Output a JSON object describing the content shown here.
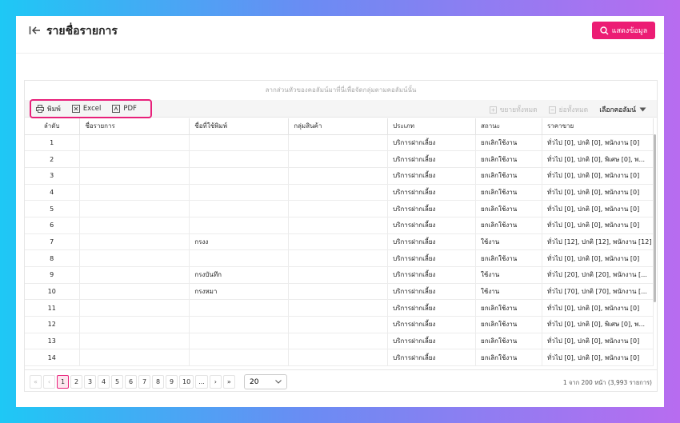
{
  "header": {
    "title": "รายชื่อรายการ",
    "button": "แสดงข้อมูล"
  },
  "table": {
    "group_hint": "ลากส่วนหัวของคอลัมน์มาที่นี่เพื่อจัดกลุ่มตามคอลัมน์นั้น",
    "toolbar_left": [
      "พิมพ์",
      "Excel",
      "PDF"
    ],
    "toolbar_right": [
      "ขยายทั้งหมด",
      "ย่อทั้งหมด",
      "เลือกคอลัมน์"
    ],
    "columns": [
      "ลำดับ",
      "ชื่อรายการ",
      "ชื่อที่ใช้พิมพ์",
      "กลุ่มสินค้า",
      "ประเภท",
      "สถานะ",
      "ราคาขาย"
    ],
    "rows": [
      [
        1,
        null,
        null,
        null,
        "บริการฝากเลี้ยง",
        "ยกเลิกใช้งาน",
        "ทั่วไป [0], ปกติ [0], พนักงาน [0]"
      ],
      [
        2,
        null,
        null,
        null,
        "บริการฝากเลี้ยง",
        "ยกเลิกใช้งาน",
        "ทั่วไป [0], ปกติ [0], พิเศษ [0], พ..."
      ],
      [
        3,
        null,
        null,
        null,
        "บริการฝากเลี้ยง",
        "ยกเลิกใช้งาน",
        "ทั่วไป [0], ปกติ [0], พนักงาน [0]"
      ],
      [
        4,
        null,
        null,
        null,
        "บริการฝากเลี้ยง",
        "ยกเลิกใช้งาน",
        "ทั่วไป [0], ปกติ [0], พนักงาน [0]"
      ],
      [
        5,
        null,
        null,
        null,
        "บริการฝากเลี้ยง",
        "ยกเลิกใช้งาน",
        "ทั่วไป [0], ปกติ [0], พนักงาน [0]"
      ],
      [
        6,
        null,
        null,
        null,
        "บริการฝากเลี้ยง",
        "ยกเลิกใช้งาน",
        "ทั่วไป [0], ปกติ [0], พนักงาน [0]"
      ],
      [
        7,
        null,
        "กรงง",
        null,
        "บริการฝากเลี้ยง",
        "ใช้งาน",
        "ทั่วไป [12], ปกติ [12], พนักงาน [12]"
      ],
      [
        8,
        null,
        null,
        null,
        "บริการฝากเลี้ยง",
        "ยกเลิกใช้งาน",
        "ทั่วไป [0], ปกติ [0], พนักงาน [0]"
      ],
      [
        9,
        null,
        "กรงบันทึก",
        null,
        "บริการฝากเลี้ยง",
        "ใช้งาน",
        "ทั่วไป [20], ปกติ [20], พนักงาน [..."
      ],
      [
        10,
        null,
        "กรงหมา",
        null,
        "บริการฝากเลี้ยง",
        "ใช้งาน",
        "ทั่วไป [70], ปกติ [70], พนักงาน [..."
      ],
      [
        11,
        null,
        null,
        null,
        "บริการฝากเลี้ยง",
        "ยกเลิกใช้งาน",
        "ทั่วไป [0], ปกติ [0], พนักงาน [0]"
      ],
      [
        12,
        null,
        null,
        null,
        "บริการฝากเลี้ยง",
        "ยกเลิกใช้งาน",
        "ทั่วไป [0], ปกติ [0], พิเศษ [0], พ..."
      ],
      [
        13,
        null,
        null,
        null,
        "บริการฝากเลี้ยง",
        "ยกเลิกใช้งาน",
        "ทั่วไป [0], ปกติ [0], พนักงาน [0]"
      ],
      [
        14,
        null,
        null,
        null,
        "บริการฝากเลี้ยง",
        "ยกเลิกใช้งาน",
        "ทั่วไป [0], ปกติ [0], พนักงาน [0]"
      ]
    ]
  },
  "pager": {
    "first": "«",
    "prev": "‹",
    "pages": [
      1,
      2,
      3,
      4,
      5,
      6,
      7,
      8,
      9,
      10
    ],
    "ellipsis": "...",
    "next": "›",
    "last": "»",
    "current": 1,
    "page_size": 20,
    "summary": "1 จาก 200 หน้า (3,993 รายการ)"
  }
}
